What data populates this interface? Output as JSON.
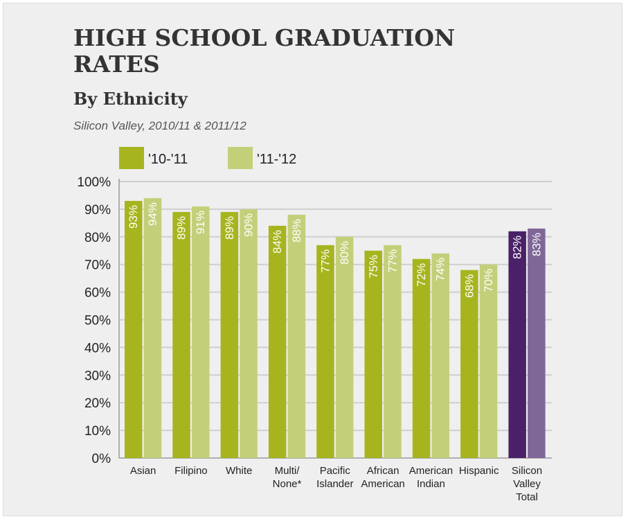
{
  "title": "HIGH SCHOOL GRADUATION RATES",
  "subtitle": "By Ethnicity",
  "caption": "Silicon Valley, 2010/11 & 2011/12",
  "colors": {
    "series1": "#a6b51e",
    "series2": "#c4cf7a",
    "total1": "#4a2168",
    "total2": "#7f6798",
    "grid": "#cfcfcf",
    "text": "#222222"
  },
  "chart_data": {
    "type": "bar",
    "categories": [
      [
        "Asian"
      ],
      [
        "Filipino"
      ],
      [
        "White"
      ],
      [
        "Multi/",
        "None*"
      ],
      [
        "Pacific",
        "Islander"
      ],
      [
        "African",
        "American"
      ],
      [
        "American",
        "Indian"
      ],
      [
        "Hispanic"
      ],
      [
        "Silicon",
        "Valley",
        "Total"
      ]
    ],
    "series": [
      {
        "name": "'10-'11",
        "values": [
          93,
          89,
          89,
          84,
          77,
          75,
          72,
          68,
          82
        ]
      },
      {
        "name": "'11-'12",
        "values": [
          94,
          91,
          90,
          88,
          80,
          77,
          74,
          70,
          83
        ]
      }
    ],
    "ylim": [
      0,
      100
    ],
    "yticks": [
      "0%",
      "10%",
      "20%",
      "30%",
      "40%",
      "50%",
      "60%",
      "70%",
      "80%",
      "90%",
      "100%"
    ],
    "grid": true,
    "legend": "top-left",
    "highlight_category": "Silicon Valley Total"
  }
}
